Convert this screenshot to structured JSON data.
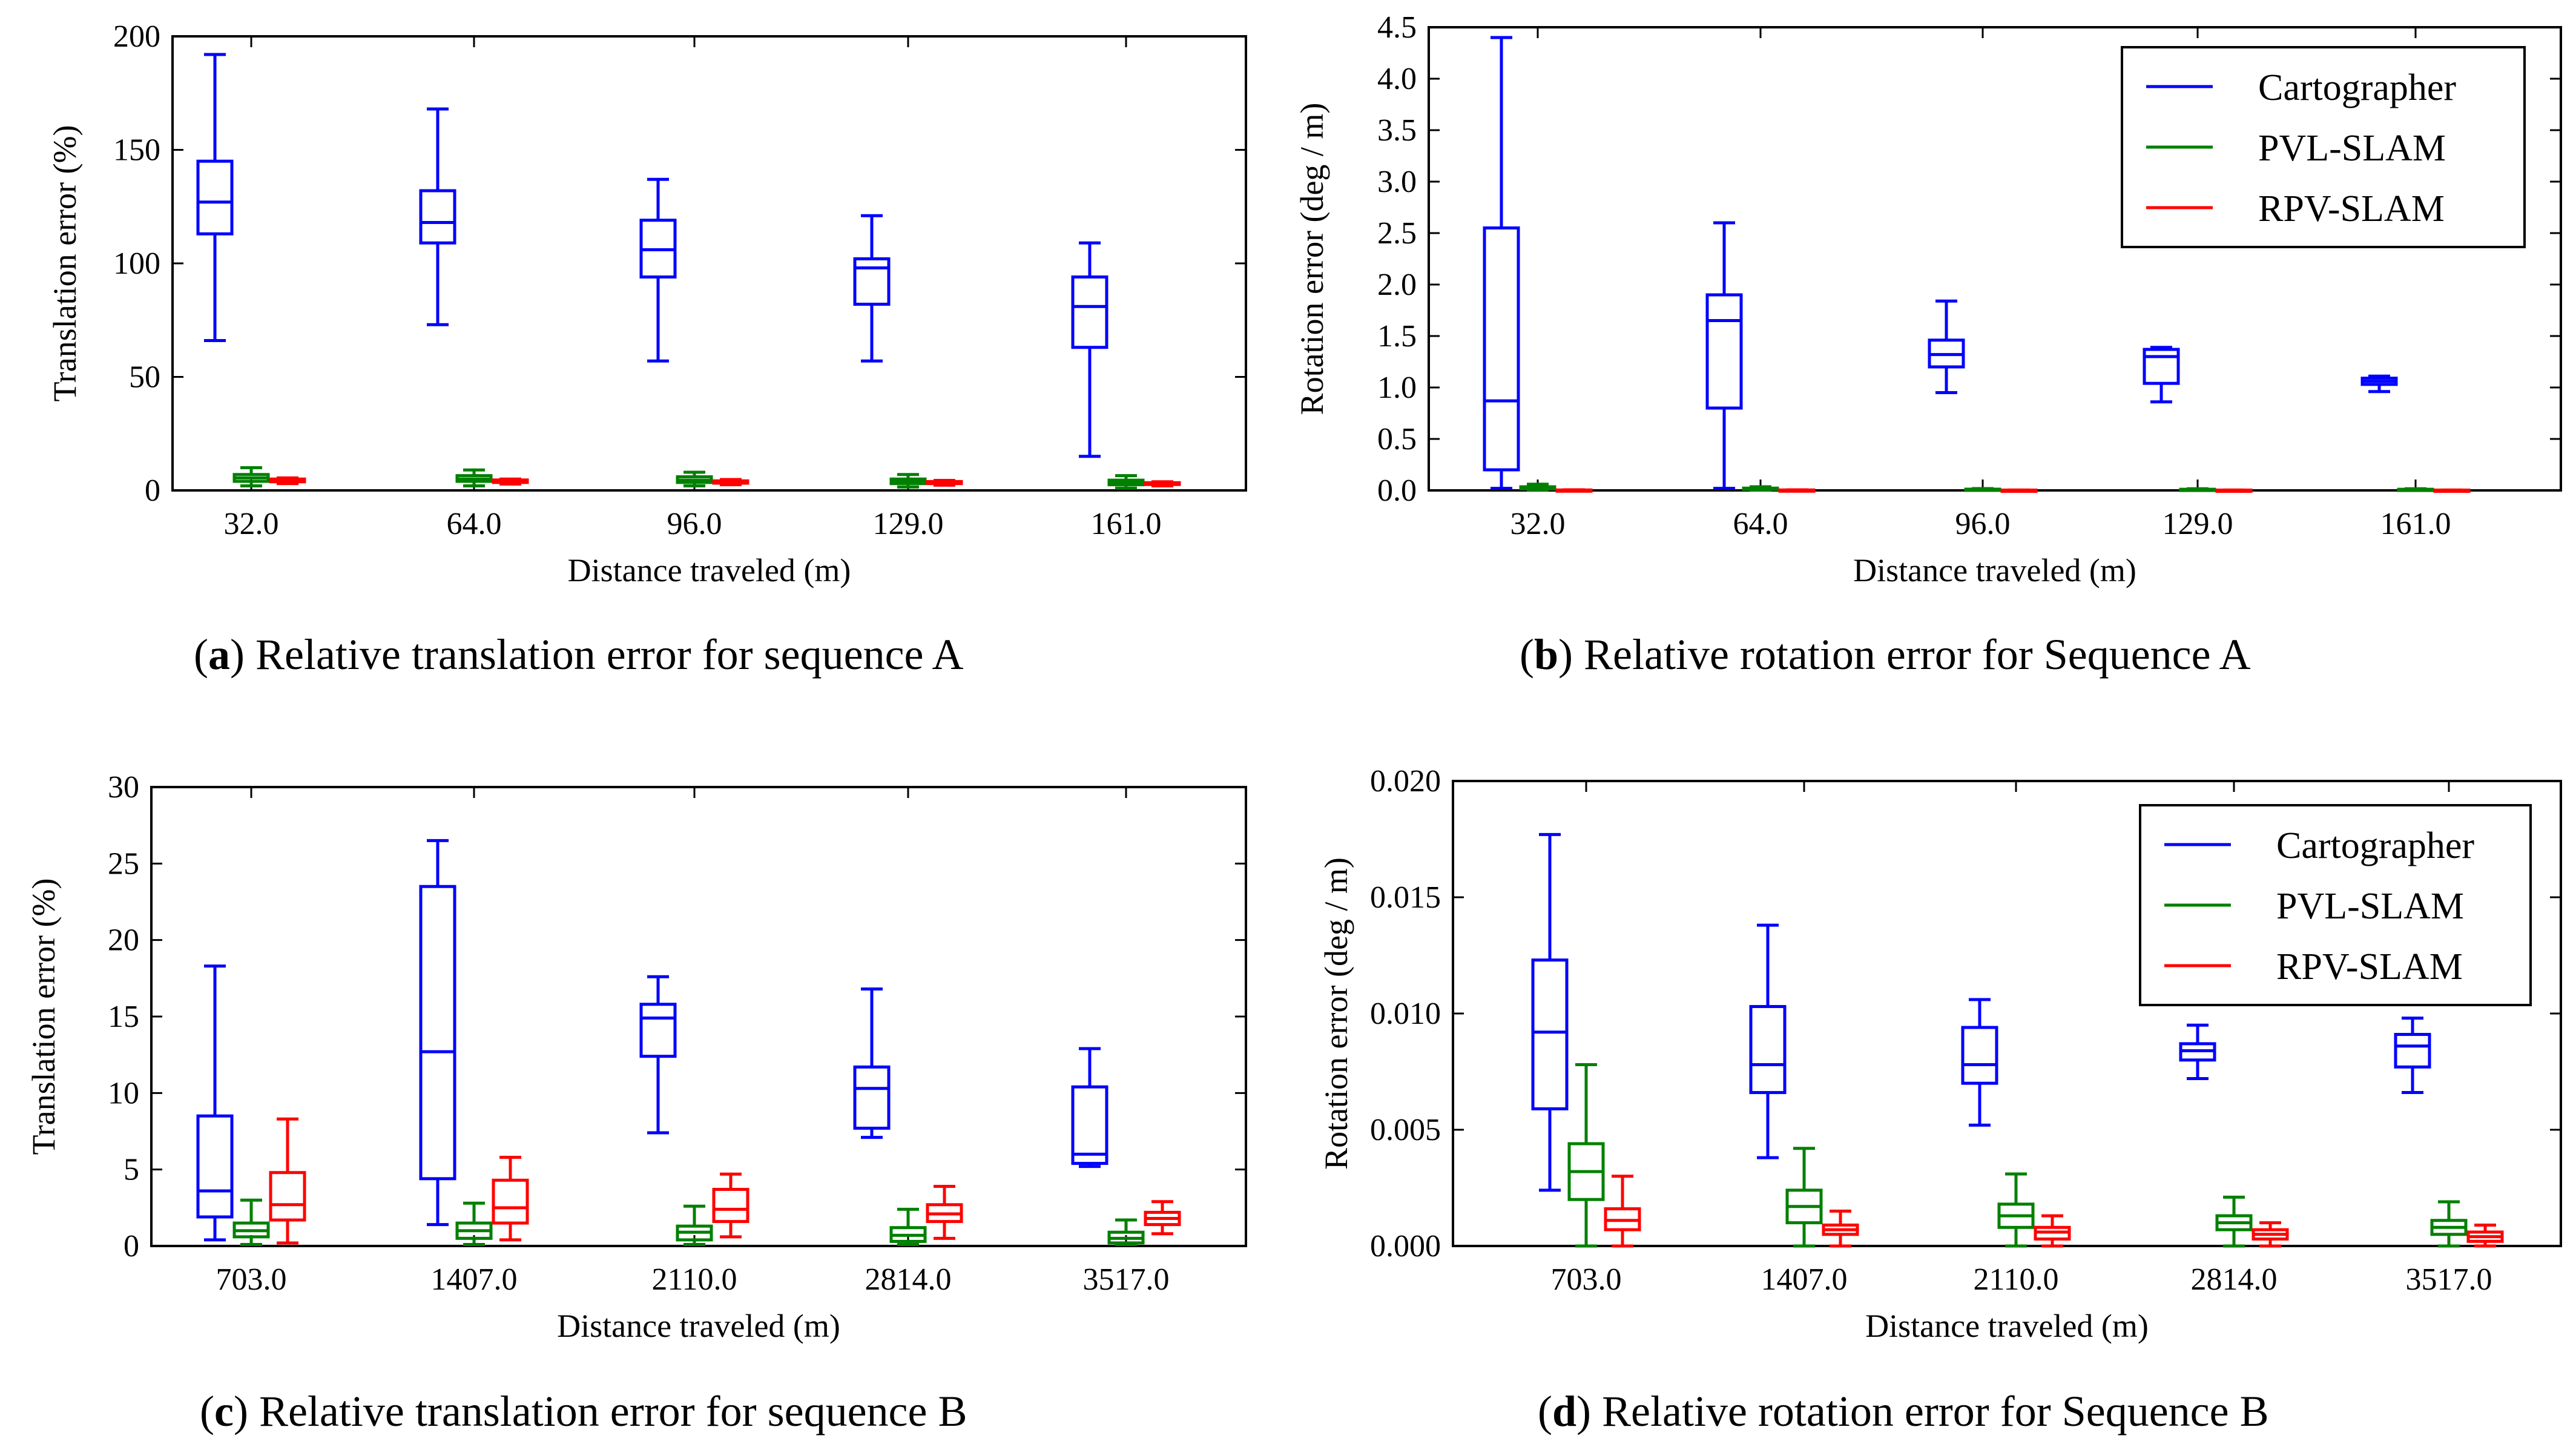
{
  "colors": {
    "Cartographer": "#0000ff",
    "PVL-SLAM": "#008000",
    "RPV-SLAM": "#ff0000"
  },
  "chart_data": [
    {
      "type": "boxplot",
      "id": "a",
      "caption_label": "(a)",
      "caption_text": " Relative translation error for sequence A",
      "xlabel": "Distance traveled (m)",
      "ylabel": "Translation error (%)",
      "ylim": [
        0,
        200
      ],
      "yticks": [
        "0",
        "50",
        "100",
        "150",
        "200"
      ],
      "ytick_values": [
        0,
        50,
        100,
        150,
        200
      ],
      "categories": [
        "32.0",
        "64.0",
        "96.0",
        "129.0",
        "161.0"
      ],
      "legend": false,
      "series": [
        {
          "name": "Cartographer",
          "boxes": [
            {
              "whislo": 66,
              "q1": 113,
              "med": 127,
              "q3": 145,
              "whishi": 192
            },
            {
              "whislo": 73,
              "q1": 109,
              "med": 118,
              "q3": 132,
              "whishi": 168
            },
            {
              "whislo": 57,
              "q1": 94,
              "med": 106,
              "q3": 119,
              "whishi": 137
            },
            {
              "whislo": 57,
              "q1": 82,
              "med": 98,
              "q3": 102,
              "whishi": 121
            },
            {
              "whislo": 15,
              "q1": 63,
              "med": 81,
              "q3": 94,
              "whishi": 109
            }
          ]
        },
        {
          "name": "PVL-SLAM",
          "boxes": [
            {
              "whislo": 2,
              "q1": 4,
              "med": 5.5,
              "q3": 7,
              "whishi": 10
            },
            {
              "whislo": 2,
              "q1": 4,
              "med": 5,
              "q3": 6.5,
              "whishi": 9
            },
            {
              "whislo": 2,
              "q1": 3.5,
              "med": 4.5,
              "q3": 6,
              "whishi": 8
            },
            {
              "whislo": 1.5,
              "q1": 3,
              "med": 4,
              "q3": 5,
              "whishi": 7
            },
            {
              "whislo": 1,
              "q1": 2.5,
              "med": 3.5,
              "q3": 4.5,
              "whishi": 6.5
            }
          ]
        },
        {
          "name": "RPV-SLAM",
          "boxes": [
            {
              "whislo": 3,
              "q1": 3.8,
              "med": 4.3,
              "q3": 5,
              "whishi": 5.5
            },
            {
              "whislo": 2.8,
              "q1": 3.5,
              "med": 4,
              "q3": 4.6,
              "whishi": 5
            },
            {
              "whislo": 2.5,
              "q1": 3.2,
              "med": 3.7,
              "q3": 4.2,
              "whishi": 4.8
            },
            {
              "whislo": 2.3,
              "q1": 3,
              "med": 3.4,
              "q3": 3.9,
              "whishi": 4.4
            },
            {
              "whislo": 2,
              "q1": 2.6,
              "med": 3,
              "q3": 3.4,
              "whishi": 3.8
            }
          ]
        }
      ]
    },
    {
      "type": "boxplot",
      "id": "b",
      "caption_label": "(b)",
      "caption_text": " Relative rotation error for Sequence A",
      "xlabel": "Distance traveled (m)",
      "ylabel": "Rotation error (deg / m)",
      "ylim": [
        0,
        4.5
      ],
      "yticks": [
        "0.0",
        "0.5",
        "1.0",
        "1.5",
        "2.0",
        "2.5",
        "3.0",
        "3.5",
        "4.0",
        "4.5"
      ],
      "ytick_values": [
        0,
        0.5,
        1.0,
        1.5,
        2.0,
        2.5,
        3.0,
        3.5,
        4.0,
        4.5
      ],
      "categories": [
        "32.0",
        "64.0",
        "96.0",
        "129.0",
        "161.0"
      ],
      "legend": true,
      "series": [
        {
          "name": "Cartographer",
          "boxes": [
            {
              "whislo": 0.02,
              "q1": 0.2,
              "med": 0.87,
              "q3": 2.55,
              "whishi": 4.4
            },
            {
              "whislo": 0.02,
              "q1": 0.8,
              "med": 1.65,
              "q3": 1.9,
              "whishi": 2.6
            },
            {
              "whislo": 0.95,
              "q1": 1.2,
              "med": 1.32,
              "q3": 1.46,
              "whishi": 1.84
            },
            {
              "whislo": 0.86,
              "q1": 1.04,
              "med": 1.3,
              "q3": 1.37,
              "whishi": 1.39
            },
            {
              "whislo": 0.96,
              "q1": 1.03,
              "med": 1.06,
              "q3": 1.09,
              "whishi": 1.11
            }
          ]
        },
        {
          "name": "PVL-SLAM",
          "boxes": [
            {
              "whislo": 0.005,
              "q1": 0.015,
              "med": 0.025,
              "q3": 0.035,
              "whishi": 0.06
            },
            {
              "whislo": 0.004,
              "q1": 0.01,
              "med": 0.015,
              "q3": 0.022,
              "whishi": 0.035
            },
            {
              "whislo": 0.003,
              "q1": 0.006,
              "med": 0.009,
              "q3": 0.012,
              "whishi": 0.018
            },
            {
              "whislo": 0.003,
              "q1": 0.006,
              "med": 0.008,
              "q3": 0.011,
              "whishi": 0.016
            },
            {
              "whislo": 0.003,
              "q1": 0.006,
              "med": 0.008,
              "q3": 0.011,
              "whishi": 0.016
            }
          ]
        },
        {
          "name": "RPV-SLAM",
          "boxes": [
            {
              "whislo": 0.001,
              "q1": 0.002,
              "med": 0.003,
              "q3": 0.004,
              "whishi": 0.006
            },
            {
              "whislo": 0.001,
              "q1": 0.002,
              "med": 0.003,
              "q3": 0.004,
              "whishi": 0.005
            },
            {
              "whislo": 0.001,
              "q1": 0.002,
              "med": 0.002,
              "q3": 0.003,
              "whishi": 0.004
            },
            {
              "whislo": 0.001,
              "q1": 0.002,
              "med": 0.002,
              "q3": 0.003,
              "whishi": 0.004
            },
            {
              "whislo": 0.001,
              "q1": 0.001,
              "med": 0.002,
              "q3": 0.003,
              "whishi": 0.004
            }
          ]
        }
      ]
    },
    {
      "type": "boxplot",
      "id": "c",
      "caption_label": "(c)",
      "caption_text": " Relative translation error for sequence B",
      "xlabel": "Distance traveled (m)",
      "ylabel": "Translation error (%)",
      "ylim": [
        0,
        30
      ],
      "yticks": [
        "0",
        "5",
        "10",
        "15",
        "20",
        "25",
        "30"
      ],
      "ytick_values": [
        0,
        5,
        10,
        15,
        20,
        25,
        30
      ],
      "categories": [
        "703.0",
        "1407.0",
        "2110.0",
        "2814.0",
        "3517.0"
      ],
      "legend": false,
      "series": [
        {
          "name": "Cartographer",
          "boxes": [
            {
              "whislo": 0.4,
              "q1": 1.9,
              "med": 3.6,
              "q3": 8.5,
              "whishi": 18.3
            },
            {
              "whislo": 1.4,
              "q1": 4.4,
              "med": 12.7,
              "q3": 23.5,
              "whishi": 26.5
            },
            {
              "whislo": 7.4,
              "q1": 12.4,
              "med": 14.9,
              "q3": 15.8,
              "whishi": 17.6
            },
            {
              "whislo": 7.1,
              "q1": 7.7,
              "med": 10.3,
              "q3": 11.7,
              "whishi": 16.8
            },
            {
              "whislo": 5.2,
              "q1": 5.4,
              "med": 6.0,
              "q3": 10.4,
              "whishi": 12.9
            }
          ]
        },
        {
          "name": "PVL-SLAM",
          "boxes": [
            {
              "whislo": 0.1,
              "q1": 0.6,
              "med": 1.0,
              "q3": 1.5,
              "whishi": 3.0
            },
            {
              "whislo": 0.1,
              "q1": 0.5,
              "med": 1.0,
              "q3": 1.5,
              "whishi": 2.8
            },
            {
              "whislo": 0.1,
              "q1": 0.4,
              "med": 0.9,
              "q3": 1.3,
              "whishi": 2.6
            },
            {
              "whislo": 0.1,
              "q1": 0.3,
              "med": 0.7,
              "q3": 1.2,
              "whishi": 2.4
            },
            {
              "whislo": 0.1,
              "q1": 0.2,
              "med": 0.5,
              "q3": 0.9,
              "whishi": 1.7
            }
          ]
        },
        {
          "name": "RPV-SLAM",
          "boxes": [
            {
              "whislo": 0.2,
              "q1": 1.7,
              "med": 2.7,
              "q3": 4.8,
              "whishi": 8.3
            },
            {
              "whislo": 0.4,
              "q1": 1.5,
              "med": 2.5,
              "q3": 4.3,
              "whishi": 5.8
            },
            {
              "whislo": 0.6,
              "q1": 1.6,
              "med": 2.4,
              "q3": 3.7,
              "whishi": 4.7
            },
            {
              "whislo": 0.5,
              "q1": 1.6,
              "med": 2.1,
              "q3": 2.7,
              "whishi": 3.9
            },
            {
              "whislo": 0.8,
              "q1": 1.4,
              "med": 1.8,
              "q3": 2.2,
              "whishi": 2.9
            }
          ]
        }
      ]
    },
    {
      "type": "boxplot",
      "id": "d",
      "caption_label": "(d)",
      "caption_text": " Relative rotation error for Sequence B",
      "xlabel": "Distance traveled (m)",
      "ylabel": "Rotation error (deg / m)",
      "ylim": [
        0,
        0.02
      ],
      "yticks": [
        "0.000",
        "0.005",
        "0.010",
        "0.015",
        "0.020"
      ],
      "ytick_values": [
        0,
        0.005,
        0.01,
        0.015,
        0.02
      ],
      "categories": [
        "703.0",
        "1407.0",
        "2110.0",
        "2814.0",
        "3517.0"
      ],
      "legend": true,
      "series": [
        {
          "name": "Cartographer",
          "boxes": [
            {
              "whislo": 0.0024,
              "q1": 0.0059,
              "med": 0.0092,
              "q3": 0.0123,
              "whishi": 0.0177
            },
            {
              "whislo": 0.0038,
              "q1": 0.0066,
              "med": 0.0078,
              "q3": 0.0103,
              "whishi": 0.0138
            },
            {
              "whislo": 0.0052,
              "q1": 0.007,
              "med": 0.0078,
              "q3": 0.0094,
              "whishi": 0.0106
            },
            {
              "whislo": 0.0072,
              "q1": 0.008,
              "med": 0.0084,
              "q3": 0.0087,
              "whishi": 0.0095
            },
            {
              "whislo": 0.0066,
              "q1": 0.0077,
              "med": 0.0086,
              "q3": 0.0091,
              "whishi": 0.0098
            }
          ]
        },
        {
          "name": "PVL-SLAM",
          "boxes": [
            {
              "whislo": 0.0,
              "q1": 0.002,
              "med": 0.0032,
              "q3": 0.0044,
              "whishi": 0.0078
            },
            {
              "whislo": 0.0,
              "q1": 0.001,
              "med": 0.0017,
              "q3": 0.0024,
              "whishi": 0.0042
            },
            {
              "whislo": 0.0,
              "q1": 0.0008,
              "med": 0.0013,
              "q3": 0.0018,
              "whishi": 0.0031
            },
            {
              "whislo": 0.0,
              "q1": 0.0007,
              "med": 0.001,
              "q3": 0.0013,
              "whishi": 0.0021
            },
            {
              "whislo": 0.0,
              "q1": 0.0005,
              "med": 0.0008,
              "q3": 0.0011,
              "whishi": 0.0019
            }
          ]
        },
        {
          "name": "RPV-SLAM",
          "boxes": [
            {
              "whislo": 0.0,
              "q1": 0.0007,
              "med": 0.0011,
              "q3": 0.0016,
              "whishi": 0.003
            },
            {
              "whislo": 0.0,
              "q1": 0.0005,
              "med": 0.0007,
              "q3": 0.0009,
              "whishi": 0.0015
            },
            {
              "whislo": 0.0,
              "q1": 0.0003,
              "med": 0.0006,
              "q3": 0.0008,
              "whishi": 0.0013
            },
            {
              "whislo": 0.0,
              "q1": 0.0003,
              "med": 0.0005,
              "q3": 0.0007,
              "whishi": 0.001
            },
            {
              "whislo": 0.0,
              "q1": 0.0002,
              "med": 0.0004,
              "q3": 0.0006,
              "whishi": 0.0009
            }
          ]
        }
      ]
    }
  ]
}
